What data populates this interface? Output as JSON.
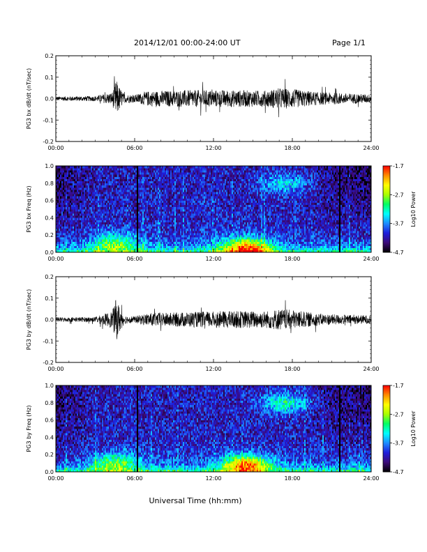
{
  "header": {
    "date_range": "2014/12/01   00:00-24:00 UT",
    "page": "Page 1/1"
  },
  "xaxis_label": "Universal Time (hh:mm)",
  "colors": {
    "trace": "#000000",
    "colormap": [
      "#000000",
      "#3c0a78",
      "#1e1edc",
      "#1e8cff",
      "#00ffff",
      "#00ff64",
      "#aaff00",
      "#ffff00",
      "#ff8c00",
      "#ff0000"
    ]
  },
  "chart_data": [
    {
      "type": "line",
      "ylabel": "PG3 bx dB/dt (nT/sec)",
      "x_ticks": [
        "00:00",
        "06:00",
        "12:00",
        "18:00",
        "24:00"
      ],
      "xlim_hours": [
        0,
        24
      ],
      "ylim": [
        -0.2,
        0.2
      ],
      "y_ticks": [
        "-0.2",
        "-0.1",
        "0.0",
        "0.1",
        "0.2"
      ],
      "envelope": {
        "x_hours": [
          0,
          3,
          4.3,
          4.6,
          4.8,
          5.2,
          6,
          7,
          10,
          13,
          16,
          17,
          18,
          20,
          22,
          24
        ],
        "amplitude": [
          0.01,
          0.012,
          0.03,
          0.09,
          0.06,
          0.02,
          0.018,
          0.035,
          0.04,
          0.04,
          0.038,
          0.05,
          0.045,
          0.03,
          0.025,
          0.02
        ]
      }
    },
    {
      "type": "heatmap",
      "ylabel": "PG3 bx Freq (Hz)",
      "x_ticks": [
        "00:00",
        "06:00",
        "12:00",
        "18:00",
        "24:00"
      ],
      "xlim_hours": [
        0,
        24
      ],
      "ylim": [
        0.0,
        1.0
      ],
      "y_ticks": [
        "0.0",
        "0.2",
        "0.4",
        "0.6",
        "0.8",
        "1.0"
      ],
      "colorbar": {
        "label": "Log10 Power",
        "range": [
          -4.7,
          -1.7
        ],
        "ticks": [
          "-1.7",
          "-2.7",
          "-3.7",
          "-4.7"
        ]
      },
      "data_gaps_hours": [
        6.2,
        21.6
      ],
      "enhancements": [
        {
          "center_hour": 14.5,
          "center_freq": 0.05,
          "level": -2.2
        },
        {
          "center_hour": 17.4,
          "center_freq": 0.8,
          "level": -3.3
        },
        {
          "center_hour": 4.5,
          "center_freq": 0.1,
          "level": -3.0
        }
      ]
    },
    {
      "type": "line",
      "ylabel": "PG3 by dB/dt (nT/sec)",
      "x_ticks": [
        "00:00",
        "06:00",
        "12:00",
        "18:00",
        "24:00"
      ],
      "xlim_hours": [
        0,
        24
      ],
      "ylim": [
        -0.2,
        0.2
      ],
      "y_ticks": [
        "-0.2",
        "-0.1",
        "0.0",
        "0.1",
        "0.2"
      ],
      "envelope": {
        "x_hours": [
          0,
          3,
          4.3,
          4.6,
          4.8,
          5.2,
          6,
          7,
          10,
          13,
          16,
          17,
          18,
          20,
          22,
          24
        ],
        "amplitude": [
          0.01,
          0.012,
          0.04,
          0.1,
          0.07,
          0.02,
          0.015,
          0.03,
          0.035,
          0.04,
          0.04,
          0.05,
          0.045,
          0.028,
          0.022,
          0.02
        ]
      }
    },
    {
      "type": "heatmap",
      "ylabel": "PG3 by Freq (Hz)",
      "x_ticks": [
        "00:00",
        "06:00",
        "12:00",
        "18:00",
        "24:00"
      ],
      "xlim_hours": [
        0,
        24
      ],
      "ylim": [
        0.0,
        1.0
      ],
      "y_ticks": [
        "0.0",
        "0.2",
        "0.4",
        "0.6",
        "0.8",
        "1.0"
      ],
      "colorbar": {
        "label": "Log10 Power",
        "range": [
          -4.7,
          -1.7
        ],
        "ticks": [
          "-1.7",
          "-2.7",
          "-3.7",
          "-4.7"
        ]
      },
      "data_gaps_hours": [
        6.2,
        21.6
      ],
      "enhancements": [
        {
          "center_hour": 14.5,
          "center_freq": 0.08,
          "level": -2.2
        },
        {
          "center_hour": 17.4,
          "center_freq": 0.8,
          "level": -3.1
        },
        {
          "center_hour": 4.5,
          "center_freq": 0.1,
          "level": -3.0
        }
      ]
    }
  ]
}
